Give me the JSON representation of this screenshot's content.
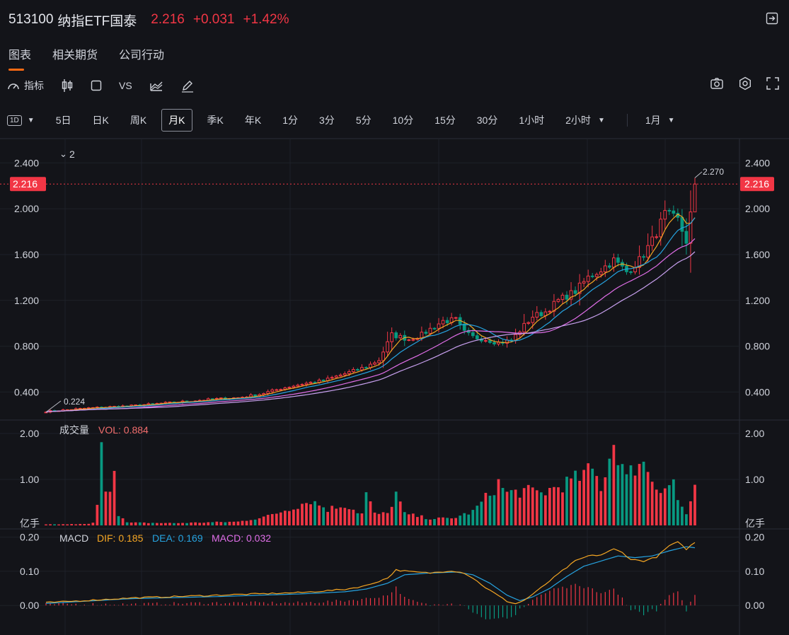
{
  "header": {
    "code": "513100",
    "name": "纳指ETF国泰",
    "price": "2.216",
    "change": "+0.031",
    "change_pct": "+1.42%"
  },
  "tabs": [
    "图表",
    "相关期货",
    "公司行动"
  ],
  "toolbar": {
    "indicator_label": "指标",
    "vs_label": "VS",
    "icons": [
      "candlestick-icon",
      "square-icon",
      "compare-icon",
      "draw-icon",
      "camera-icon",
      "gear-icon",
      "fullscreen-icon"
    ]
  },
  "periods": {
    "selector": "1D",
    "items": [
      "5日",
      "日K",
      "周K",
      "月K",
      "季K",
      "年K",
      "1分",
      "3分",
      "5分",
      "10分",
      "15分",
      "30分",
      "1小时",
      "2小时"
    ],
    "active": "月K",
    "range": "1月"
  },
  "chart_data": [
    {
      "type": "candlestick",
      "legend_toggle": "2",
      "y_ticks": [
        "2.400",
        "2.000",
        "1.600",
        "1.200",
        "0.800",
        "0.400"
      ],
      "ylim": [
        0.18,
        2.6
      ],
      "last_price_label": "2.216",
      "high_annotation": "2.270",
      "low_annotation": "0.224",
      "colors": {
        "up": "#f23645",
        "down": "#089981",
        "ma5": "#f5a623",
        "ma10": "#26a3e0",
        "ma20": "#e06ee8",
        "ma30": "#c9a1f0"
      },
      "close_anchors": [
        [
          0,
          0.23
        ],
        [
          10,
          0.26
        ],
        [
          20,
          0.28
        ],
        [
          30,
          0.31
        ],
        [
          40,
          0.34
        ],
        [
          45,
          0.35
        ],
        [
          50,
          0.38
        ],
        [
          55,
          0.43
        ],
        [
          60,
          0.47
        ],
        [
          65,
          0.5
        ],
        [
          70,
          0.56
        ],
        [
          75,
          0.62
        ],
        [
          78,
          0.68
        ],
        [
          81,
          0.9
        ],
        [
          85,
          0.86
        ],
        [
          88,
          0.9
        ],
        [
          90,
          0.95
        ],
        [
          93,
          1.02
        ],
        [
          96,
          1.03
        ],
        [
          98,
          0.92
        ],
        [
          100,
          0.88
        ],
        [
          103,
          0.86
        ],
        [
          106,
          0.83
        ],
        [
          109,
          0.85
        ],
        [
          112,
          0.98
        ],
        [
          114,
          1.06
        ],
        [
          117,
          1.1
        ],
        [
          120,
          1.2
        ],
        [
          124,
          1.28
        ],
        [
          127,
          1.4
        ],
        [
          130,
          1.47
        ],
        [
          133,
          1.55
        ],
        [
          136,
          1.45
        ],
        [
          139,
          1.55
        ],
        [
          142,
          1.72
        ],
        [
          145,
          1.95
        ],
        [
          148,
          1.9
        ],
        [
          150,
          1.72
        ],
        [
          151,
          1.95
        ],
        [
          152,
          2.216
        ]
      ]
    },
    {
      "type": "bar",
      "title": "成交量",
      "value_label": "VOL: 0.884",
      "y_ticks": [
        "2.00",
        "1.00",
        "亿手"
      ],
      "ylim": [
        0,
        2.0
      ],
      "anchors": [
        [
          0,
          0.02
        ],
        [
          10,
          0.03
        ],
        [
          11,
          0.06
        ],
        [
          12,
          0.4
        ],
        [
          13,
          1.6
        ],
        [
          14,
          0.9
        ],
        [
          15,
          0.82
        ],
        [
          16,
          1.35
        ],
        [
          17,
          0.25
        ],
        [
          18,
          0.15
        ],
        [
          19,
          0.06
        ],
        [
          30,
          0.05
        ],
        [
          45,
          0.08
        ],
        [
          52,
          0.2
        ],
        [
          58,
          0.4
        ],
        [
          62,
          0.55
        ],
        [
          66,
          0.35
        ],
        [
          70,
          0.45
        ],
        [
          74,
          0.25
        ],
        [
          75,
          0.7
        ],
        [
          77,
          0.25
        ],
        [
          80,
          0.25
        ],
        [
          82,
          0.7
        ],
        [
          84,
          0.25
        ],
        [
          90,
          0.15
        ],
        [
          95,
          0.15
        ],
        [
          100,
          0.3
        ],
        [
          104,
          0.7
        ],
        [
          106,
          0.92
        ],
        [
          108,
          0.7
        ],
        [
          112,
          0.75
        ],
        [
          116,
          0.7
        ],
        [
          120,
          0.85
        ],
        [
          124,
          1.0
        ],
        [
          128,
          1.2
        ],
        [
          130,
          0.85
        ],
        [
          133,
          1.8
        ],
        [
          134,
          1.6
        ],
        [
          136,
          1.0
        ],
        [
          139,
          1.45
        ],
        [
          141,
          1.2
        ],
        [
          143,
          0.85
        ],
        [
          145,
          0.85
        ],
        [
          147,
          0.95
        ],
        [
          148,
          0.55
        ],
        [
          149,
          0.4
        ],
        [
          150,
          0.25
        ],
        [
          151,
          0.5
        ],
        [
          152,
          0.884
        ]
      ]
    },
    {
      "type": "line",
      "title": "MACD",
      "dif_label": "DIF: 0.185",
      "dea_label": "DEA: 0.169",
      "macd_label": "MACD: 0.032",
      "y_ticks": [
        "0.20",
        "0.10",
        "0.00"
      ],
      "ylim": [
        -0.07,
        0.22
      ],
      "dif_anchors": [
        [
          0,
          0.008
        ],
        [
          20,
          0.022
        ],
        [
          40,
          0.03
        ],
        [
          60,
          0.038
        ],
        [
          70,
          0.047
        ],
        [
          75,
          0.058
        ],
        [
          80,
          0.08
        ],
        [
          82,
          0.104
        ],
        [
          86,
          0.098
        ],
        [
          90,
          0.095
        ],
        [
          95,
          0.102
        ],
        [
          98,
          0.095
        ],
        [
          100,
          0.08
        ],
        [
          103,
          0.052
        ],
        [
          106,
          0.028
        ],
        [
          108,
          0.012
        ],
        [
          110,
          0.005
        ],
        [
          112,
          0.015
        ],
        [
          115,
          0.042
        ],
        [
          118,
          0.072
        ],
        [
          121,
          0.102
        ],
        [
          124,
          0.13
        ],
        [
          127,
          0.145
        ],
        [
          130,
          0.148
        ],
        [
          133,
          0.165
        ],
        [
          135,
          0.155
        ],
        [
          137,
          0.135
        ],
        [
          140,
          0.13
        ],
        [
          143,
          0.142
        ],
        [
          146,
          0.175
        ],
        [
          148,
          0.185
        ],
        [
          150,
          0.165
        ],
        [
          152,
          0.185
        ]
      ],
      "dea_anchors": [
        [
          0,
          0.006
        ],
        [
          20,
          0.02
        ],
        [
          40,
          0.026
        ],
        [
          60,
          0.034
        ],
        [
          70,
          0.04
        ],
        [
          75,
          0.048
        ],
        [
          80,
          0.065
        ],
        [
          84,
          0.09
        ],
        [
          90,
          0.095
        ],
        [
          96,
          0.098
        ],
        [
          100,
          0.09
        ],
        [
          104,
          0.065
        ],
        [
          108,
          0.03
        ],
        [
          111,
          0.014
        ],
        [
          114,
          0.025
        ],
        [
          118,
          0.05
        ],
        [
          122,
          0.085
        ],
        [
          126,
          0.115
        ],
        [
          130,
          0.13
        ],
        [
          134,
          0.145
        ],
        [
          138,
          0.14
        ],
        [
          142,
          0.145
        ],
        [
          146,
          0.16
        ],
        [
          150,
          0.172
        ],
        [
          152,
          0.169
        ]
      ]
    }
  ]
}
